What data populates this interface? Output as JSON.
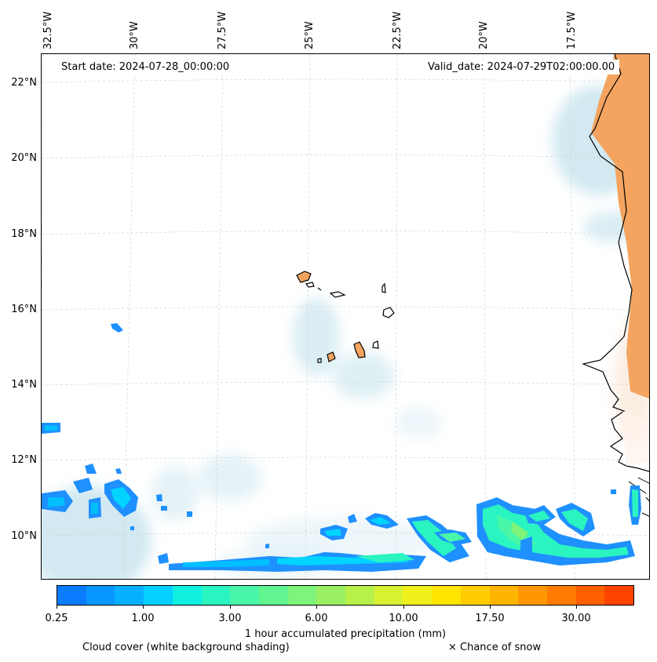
{
  "map": {
    "lon_labels": [
      "32.5°W",
      "30°W",
      "27.5°W",
      "25°W",
      "22.5°W",
      "20°W",
      "17.5°W"
    ],
    "lat_labels": [
      "22°N",
      "20°N",
      "18°N",
      "16°N",
      "14°N",
      "12°N",
      "10°N"
    ],
    "start_date": "Start date: 2024-07-28_00:00:00",
    "valid_date": "Valid_date: 2024-07-29T02:00:00.00",
    "land_color": "#f4a460",
    "cloud_color": "#add8e6",
    "precip_base_color": "#1e90ff"
  },
  "colorbar": {
    "tick_labels": [
      "0.25",
      "1.00",
      "3.00",
      "6.00",
      "10.00",
      "17.50",
      "30.00"
    ],
    "colors": [
      "#0a7cff",
      "#0896ff",
      "#06b0ff",
      "#05d0ff",
      "#10f0e0",
      "#2af5c0",
      "#4af7a8",
      "#60f590",
      "#7ef47a",
      "#9af062",
      "#b8f04a",
      "#d8f232",
      "#f0f01c",
      "#ffe400",
      "#ffcc00",
      "#ffb400",
      "#ff9800",
      "#ff7c00",
      "#ff6000",
      "#ff4400"
    ],
    "label": "1 hour accumulated precipitation (mm)"
  },
  "legend": {
    "cloud_cover": "Cloud cover (white background shading)",
    "snow": "× Chance of snow"
  }
}
